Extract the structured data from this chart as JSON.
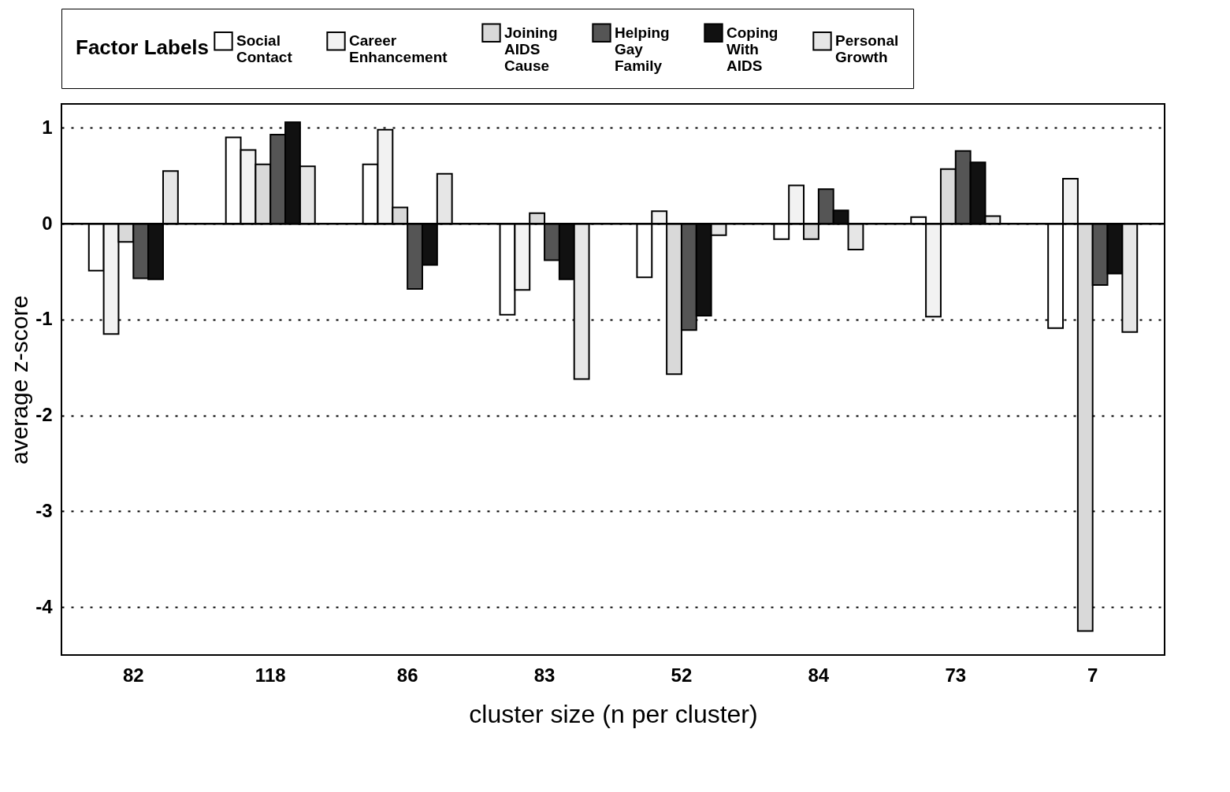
{
  "chart_data": {
    "type": "bar",
    "xlabel": "cluster size (n per cluster)",
    "ylabel": "average z-score",
    "legend_title": "Factor Labels",
    "categories": [
      "82",
      "118",
      "86",
      "83",
      "52",
      "84",
      "73",
      "7"
    ],
    "series": [
      {
        "name": "Social Contact",
        "color": "#ffffff",
        "values": [
          -0.49,
          0.9,
          0.62,
          -0.95,
          -0.56,
          -0.16,
          0.07,
          -1.09
        ]
      },
      {
        "name": "Career Enhancement",
        "color": "#f2f2f2",
        "values": [
          -1.15,
          0.77,
          0.98,
          -0.69,
          0.13,
          0.4,
          -0.97,
          0.47
        ]
      },
      {
        "name": "Joining AIDS Cause",
        "color": "#d9d9d9",
        "values": [
          -0.19,
          0.62,
          0.17,
          0.11,
          -1.57,
          -0.16,
          0.57,
          -4.25
        ]
      },
      {
        "name": "Helping Gay Family",
        "color": "#555555",
        "values": [
          -0.57,
          0.93,
          -0.68,
          -0.38,
          -1.11,
          0.36,
          0.76,
          -0.64
        ]
      },
      {
        "name": "Coping With AIDS",
        "color": "#111111",
        "values": [
          -0.58,
          1.06,
          -0.43,
          -0.58,
          -0.96,
          0.14,
          0.64,
          -0.52
        ]
      },
      {
        "name": "Personal Growth",
        "color": "#e6e6e6",
        "values": [
          0.55,
          0.6,
          0.52,
          -1.62,
          -0.12,
          -0.27,
          0.08,
          -1.13
        ]
      }
    ],
    "ylim": [
      -4.5,
      1.25
    ],
    "yticks": [
      -4,
      -3,
      -2,
      -1,
      0,
      1
    ],
    "grid": "y",
    "legend": "top"
  }
}
